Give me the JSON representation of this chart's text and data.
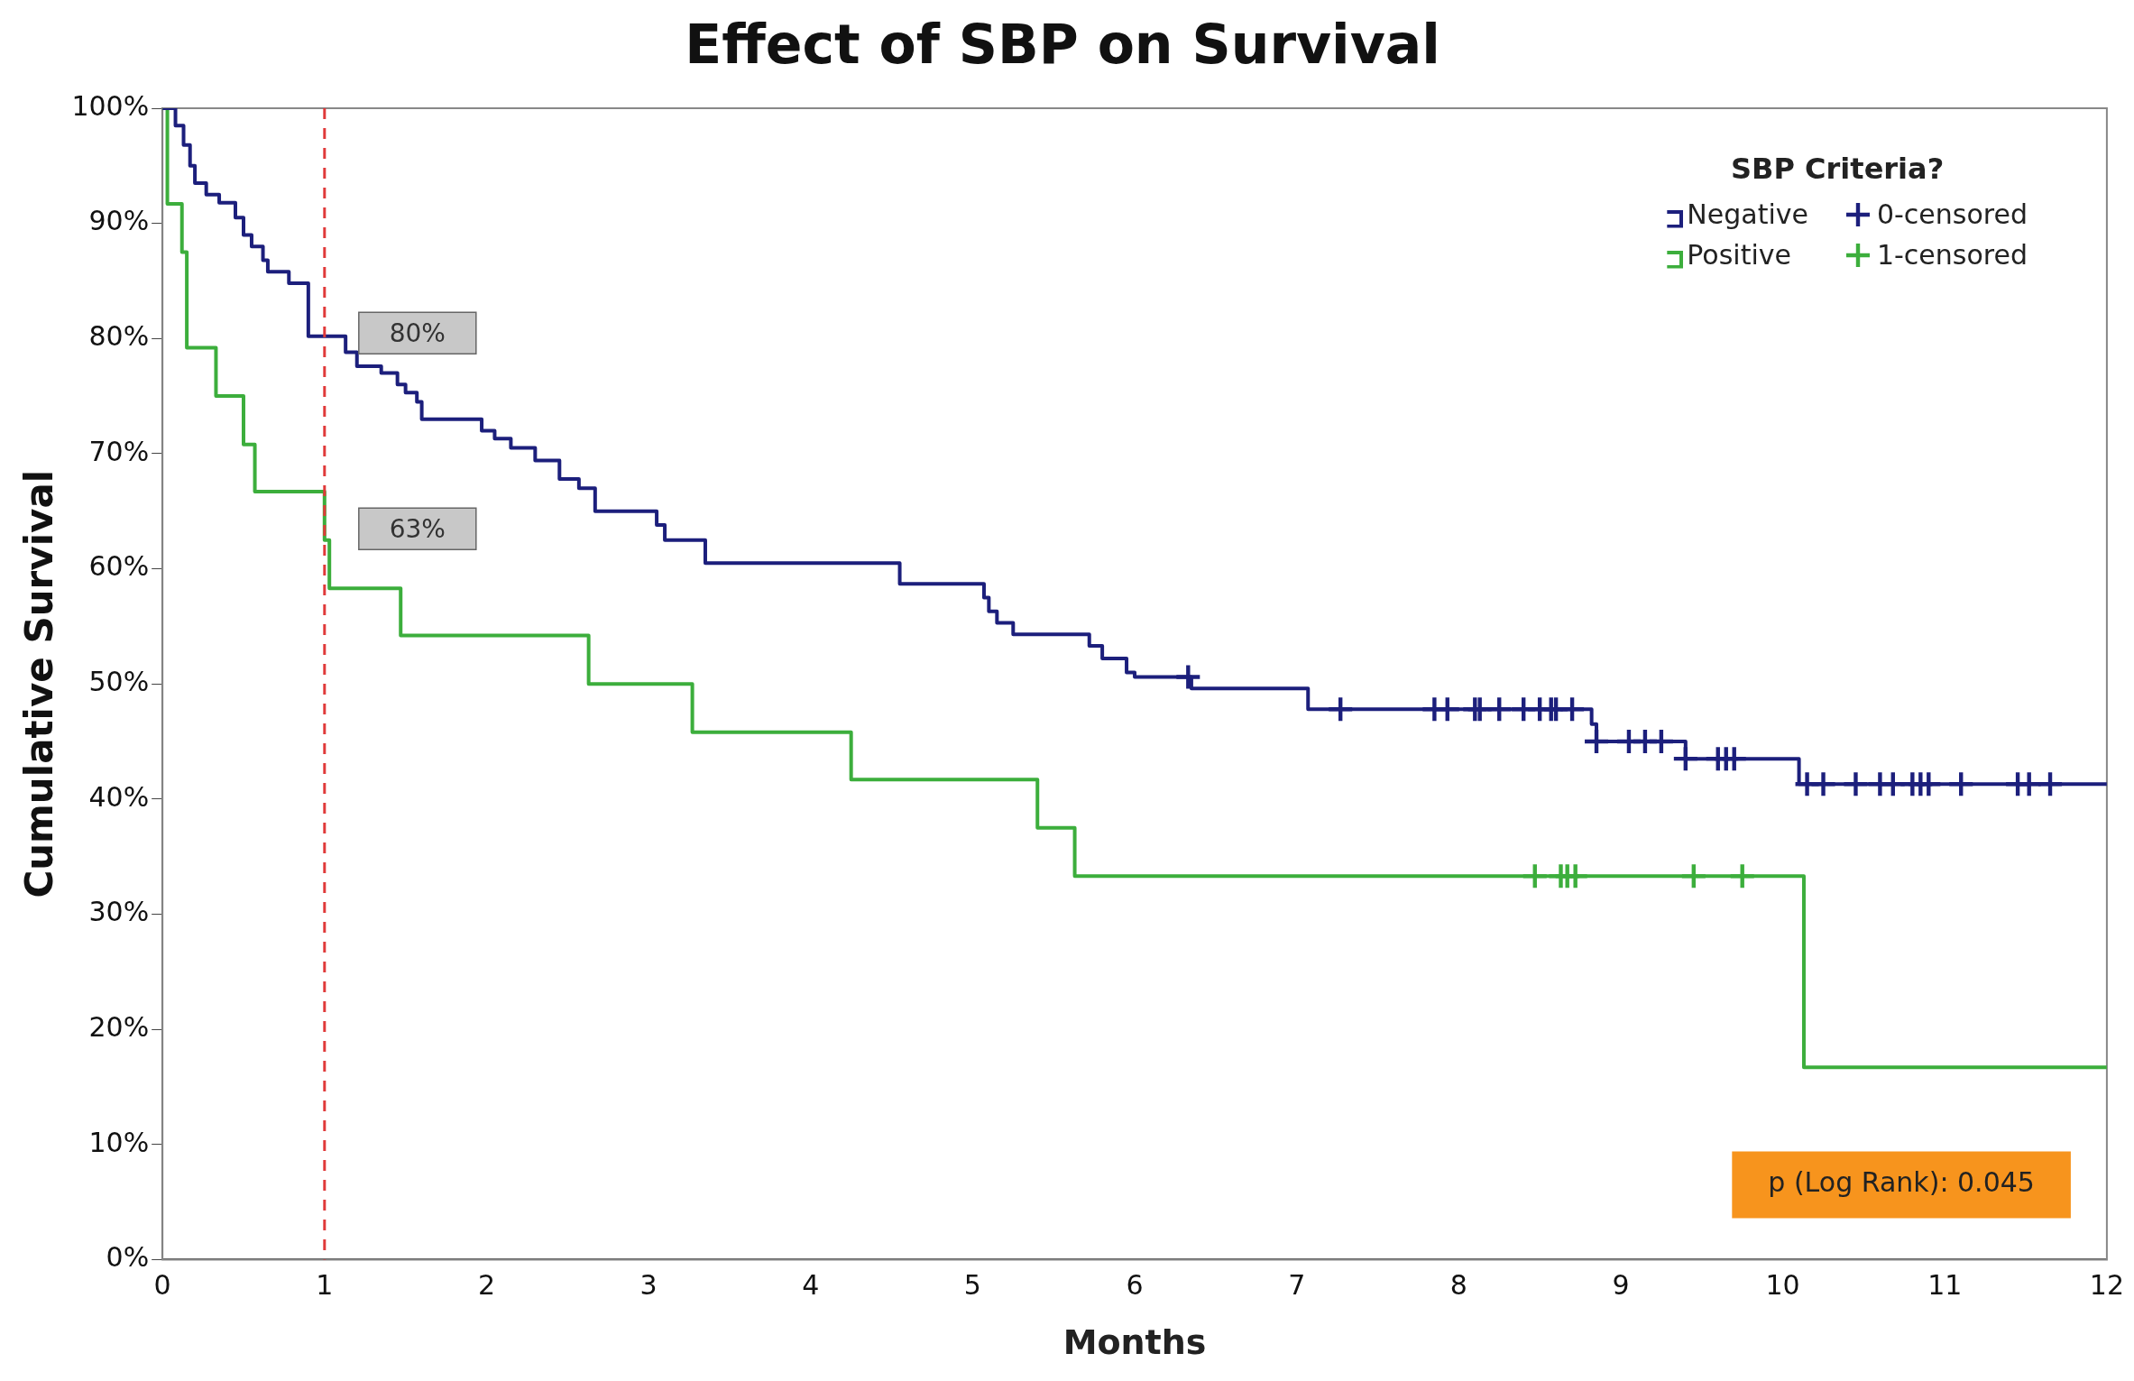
{
  "chart_data": {
    "type": "step",
    "title": "Effect of SBP on Survival",
    "xlabel": "Months",
    "ylabel": "Cumulative Survival",
    "legend_title": "SBP Criteria?",
    "xlim": [
      0,
      12
    ],
    "xticks": [
      0,
      1,
      2,
      3,
      4,
      5,
      6,
      7,
      8,
      9,
      10,
      11,
      12
    ],
    "ylim": [
      0,
      100
    ],
    "yticks": [
      {
        "value": 0,
        "label": "0%"
      },
      {
        "value": 10,
        "label": "10%"
      },
      {
        "value": 20,
        "label": "20%"
      },
      {
        "value": 30,
        "label": "30%"
      },
      {
        "value": 40,
        "label": "40%"
      },
      {
        "value": 50,
        "label": "50%"
      },
      {
        "value": 60,
        "label": "60%"
      },
      {
        "value": 70,
        "label": "70%"
      },
      {
        "value": 80,
        "label": "80%"
      },
      {
        "value": 90,
        "label": "90%"
      },
      {
        "value": 100,
        "label": "100%"
      }
    ],
    "grid": false,
    "legend": "top right",
    "series": [
      {
        "name": "Negative",
        "color": "#1c1f7c",
        "x": [
          0,
          0.08,
          0.13,
          0.17,
          0.2,
          0.27,
          0.35,
          0.45,
          0.5,
          0.55,
          0.62,
          0.65,
          0.78,
          0.9,
          1.13,
          1.2,
          1.35,
          1.45,
          1.5,
          1.57,
          1.6,
          1.97,
          2.05,
          2.15,
          2.3,
          2.45,
          2.57,
          2.67,
          3.05,
          3.1,
          3.35,
          4.55,
          5.07,
          5.1,
          5.15,
          5.25,
          5.72,
          5.8,
          5.95,
          6.0,
          6.35,
          7.07,
          8.82,
          8.85,
          9.4,
          10.1,
          12
        ],
        "values": [
          100,
          98.5,
          96.8,
          95,
          93.5,
          92.5,
          91.8,
          90.5,
          89,
          88,
          86.8,
          85.8,
          84.8,
          80.2,
          78.8,
          77.6,
          77,
          76,
          75.3,
          74.5,
          73,
          72,
          71.3,
          70.5,
          69.4,
          67.8,
          67,
          65,
          63.8,
          62.5,
          60.5,
          58.7,
          57.5,
          56.3,
          55.3,
          54.3,
          53.3,
          52.2,
          51,
          50.6,
          49.6,
          47.8,
          46.5,
          45,
          43.5,
          41.3,
          41.3
        ]
      },
      {
        "name": "Positive",
        "color": "#3cae3c",
        "x": [
          0,
          0.03,
          0.12,
          0.15,
          0.33,
          0.5,
          0.57,
          1.0,
          1.03,
          1.47,
          2.63,
          3.27,
          4.25,
          5.4,
          5.63,
          10.13,
          12
        ],
        "values": [
          100,
          91.7,
          87.5,
          79.2,
          75,
          70.8,
          66.7,
          62.5,
          58.3,
          54.2,
          50,
          45.8,
          41.7,
          37.5,
          33.3,
          16.7,
          16.7
        ]
      },
      {
        "type": "scatter",
        "name": "0-censored",
        "color": "#1c1f7c",
        "marker": "cross",
        "x": [
          6.33,
          7.27,
          7.85,
          7.93,
          8.1,
          8.13,
          8.25,
          8.4,
          8.5,
          8.57,
          8.6,
          8.7,
          8.85,
          9.05,
          9.15,
          9.25,
          9.4,
          9.6,
          9.65,
          9.7,
          10.15,
          10.25,
          10.45,
          10.6,
          10.68,
          10.8,
          10.85,
          10.9,
          11.1,
          11.45,
          11.52,
          11.65
        ],
        "values": [
          50.6,
          47.8,
          47.8,
          47.8,
          47.8,
          47.8,
          47.8,
          47.8,
          47.8,
          47.8,
          47.8,
          47.8,
          45,
          45,
          45,
          45,
          43.5,
          43.5,
          43.5,
          43.5,
          41.3,
          41.3,
          41.3,
          41.3,
          41.3,
          41.3,
          41.3,
          41.3,
          41.3,
          41.3,
          41.3,
          41.3
        ]
      },
      {
        "type": "scatter",
        "name": "1-censored",
        "color": "#3cae3c",
        "marker": "cross",
        "x": [
          8.47,
          8.63,
          8.67,
          8.72,
          9.45,
          9.75
        ],
        "values": [
          33.3,
          33.3,
          33.3,
          33.3,
          33.3,
          33.3
        ]
      }
    ],
    "ref_lines": [
      {
        "axis": "x",
        "value": 1,
        "color": "#e03a3a",
        "line_style": "dashed"
      }
    ],
    "annotations": [
      {
        "text": "80%",
        "x": 1,
        "y": 80
      },
      {
        "text": "63%",
        "x": 1,
        "y": 63
      },
      "p (Log Rank): 0.045"
    ]
  }
}
